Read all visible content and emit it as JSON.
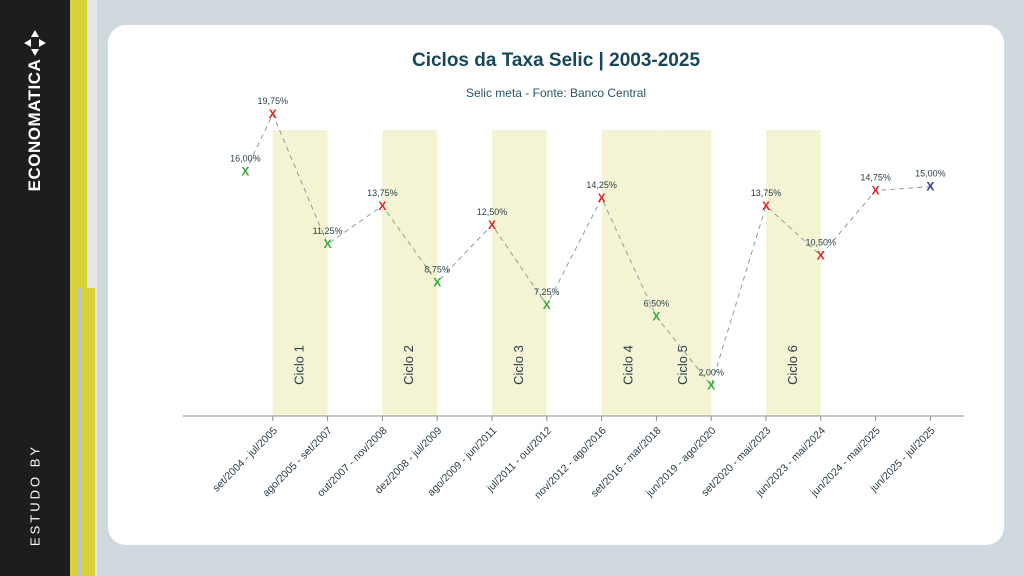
{
  "brand": {
    "name": "ECONOMATICA",
    "tagline": "ESTUDO BY"
  },
  "colors": {
    "title": "#17485a",
    "cycle_band": "#f4f3d3",
    "marker_green": "#3aab3e",
    "marker_red": "#e0262b",
    "marker_blue": "#2b3e9a",
    "connector": "#8aa0ad",
    "sidebar": "#1d1d1d",
    "accent_yellow": "#d8d23a"
  },
  "chart_data": {
    "type": "line",
    "title": "Ciclos da Taxa Selic | 2003-2025",
    "subtitle": "Selic meta - Fonte: Banco Central",
    "categories": [
      "set/2004 - jul/2005",
      "ago/2005 - set/2007",
      "out/2007 - nov/2008",
      "dez/2008 - jul/2009",
      "ago/2009 - jun/2011",
      "jul/2011 - out/2012",
      "nov/2012 - ago/2016",
      "set/2016 - mar/2018",
      "jun/2019 - ago/2020",
      "set/2020 - mai/2023",
      "jun/2023 - mai/2024",
      "jun/2024 - mai/2025",
      "jun/2025 - jul/2025"
    ],
    "points": [
      {
        "x": 0.5,
        "value": 16.0,
        "label": "16,00%",
        "marker": "green"
      },
      {
        "x": 1.0,
        "value": 19.75,
        "label": "19,75%",
        "marker": "red"
      },
      {
        "x": 2.0,
        "value": 11.25,
        "label": "11,25%",
        "marker": "green"
      },
      {
        "x": 3.0,
        "value": 13.75,
        "label": "13,75%",
        "marker": "red"
      },
      {
        "x": 4.0,
        "value": 8.75,
        "label": "8,75%",
        "marker": "green"
      },
      {
        "x": 5.0,
        "value": 12.5,
        "label": "12,50%",
        "marker": "red"
      },
      {
        "x": 6.0,
        "value": 7.25,
        "label": "7,25%",
        "marker": "green"
      },
      {
        "x": 7.0,
        "value": 14.25,
        "label": "14,25%",
        "marker": "red"
      },
      {
        "x": 8.0,
        "value": 6.5,
        "label": "6,50%",
        "marker": "green"
      },
      {
        "x": 9.0,
        "value": 2.0,
        "label": "2,00%",
        "marker": "green"
      },
      {
        "x": 10.0,
        "value": 13.75,
        "label": "13,75%",
        "marker": "red"
      },
      {
        "x": 11.0,
        "value": 10.5,
        "label": "10,50%",
        "marker": "red"
      },
      {
        "x": 12.0,
        "value": 14.75,
        "label": "14,75%",
        "marker": "red"
      },
      {
        "x": 13.0,
        "value": 15.0,
        "label": "15,00%",
        "marker": "blue"
      }
    ],
    "marker_symbol": "X",
    "cycles": [
      {
        "label": "Ciclo 1",
        "from": 1,
        "to": 2
      },
      {
        "label": "Ciclo 2",
        "from": 3,
        "to": 4
      },
      {
        "label": "Ciclo 3",
        "from": 5,
        "to": 6
      },
      {
        "label": "Ciclo 4",
        "from": 7,
        "to": 8
      },
      {
        "label": "Ciclo 5",
        "from": 8,
        "to": 9
      },
      {
        "label": "Ciclo 6",
        "from": 10,
        "to": 11
      }
    ],
    "ylim": [
      0,
      21
    ],
    "grid": false,
    "legend": "none"
  }
}
